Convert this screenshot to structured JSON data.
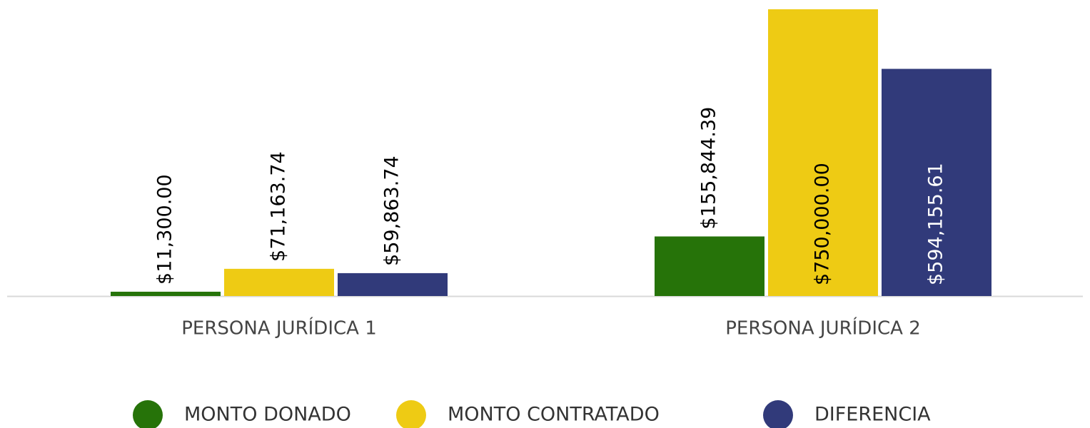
{
  "chart_data": {
    "type": "bar",
    "categories": [
      "PERSONA JURÍDICA 1",
      "PERSONA JURÍDICA 2"
    ],
    "series": [
      {
        "name": "MONTO DONADO",
        "color": "#267309",
        "values": [
          11300.0,
          155844.39
        ],
        "value_labels": [
          "$11,300.00",
          "$155,844.39"
        ]
      },
      {
        "name": "MONTO CONTRATADO",
        "color": "#eecb14",
        "values": [
          71163.74,
          750000.0
        ],
        "value_labels": [
          "$71,163.74",
          "$750,000.00"
        ]
      },
      {
        "name": "DIFERENCIA",
        "color": "#313a7a",
        "values": [
          59863.74,
          594155.61
        ],
        "value_labels": [
          "$59,863.74",
          "$594,155.61"
        ]
      }
    ]
  }
}
